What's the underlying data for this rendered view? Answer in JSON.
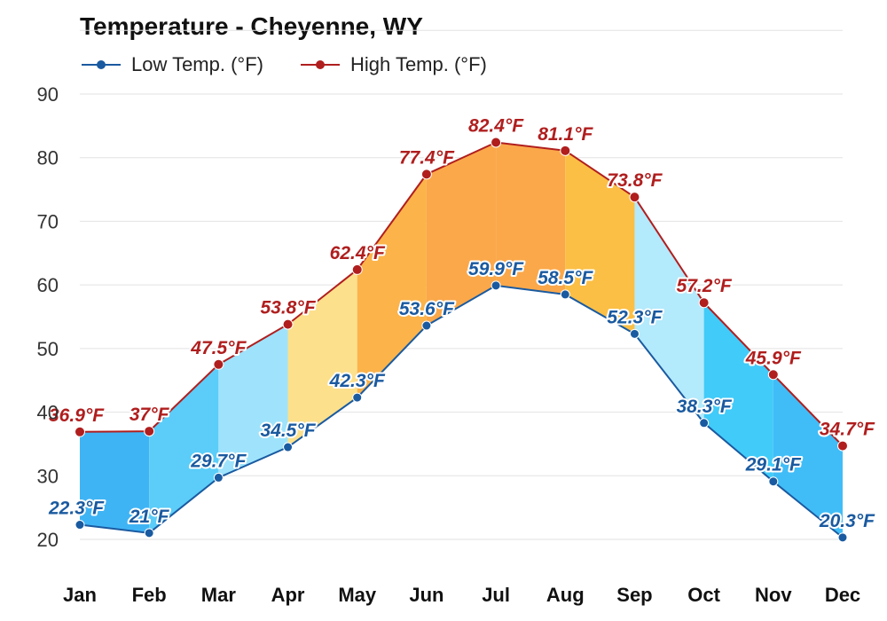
{
  "chart_data": {
    "type": "line",
    "title": "Temperature - Cheyenne, WY",
    "categories": [
      "Jan",
      "Feb",
      "Mar",
      "Apr",
      "May",
      "Jun",
      "Jul",
      "Aug",
      "Sep",
      "Oct",
      "Nov",
      "Dec"
    ],
    "series": [
      {
        "name": "Low Temp. (°F)",
        "values": [
          22.3,
          21,
          29.7,
          34.5,
          42.3,
          53.6,
          59.9,
          58.5,
          52.3,
          38.3,
          29.1,
          20.3
        ],
        "labels": [
          "22.3°F",
          "21°F",
          "29.7°F",
          "34.5°F",
          "42.3°F",
          "53.6°F",
          "59.9°F",
          "58.5°F",
          "52.3°F",
          "38.3°F",
          "29.1°F",
          "20.3°F"
        ],
        "color": "#1a5aa0"
      },
      {
        "name": "High Temp. (°F)",
        "values": [
          36.9,
          37,
          47.5,
          53.8,
          62.4,
          77.4,
          82.4,
          81.1,
          73.8,
          57.2,
          45.9,
          34.7
        ],
        "labels": [
          "36.9°F",
          "37°F",
          "47.5°F",
          "53.8°F",
          "62.4°F",
          "77.4°F",
          "82.4°F",
          "81.1°F",
          "73.8°F",
          "57.2°F",
          "45.9°F",
          "34.7°F"
        ],
        "color": "#b01e1e"
      }
    ],
    "yticks": [
      "20",
      "30",
      "40",
      "50",
      "60",
      "70",
      "80",
      "90"
    ],
    "ylim": [
      20,
      90
    ],
    "grid": true,
    "legend": "top-left",
    "band_colors": [
      "#3fb4f5",
      "#5bcdf8",
      "#9ee3fb",
      "#fce08c",
      "#fbb34a",
      "#fba84a",
      "#fba84a",
      "#fbbf45",
      "#b3eafc",
      "#41cbf9",
      "#40bdf7",
      "#3fb4f5"
    ],
    "low_label_color": "#1a5aa0",
    "high_label_color": "#b01e1e"
  }
}
